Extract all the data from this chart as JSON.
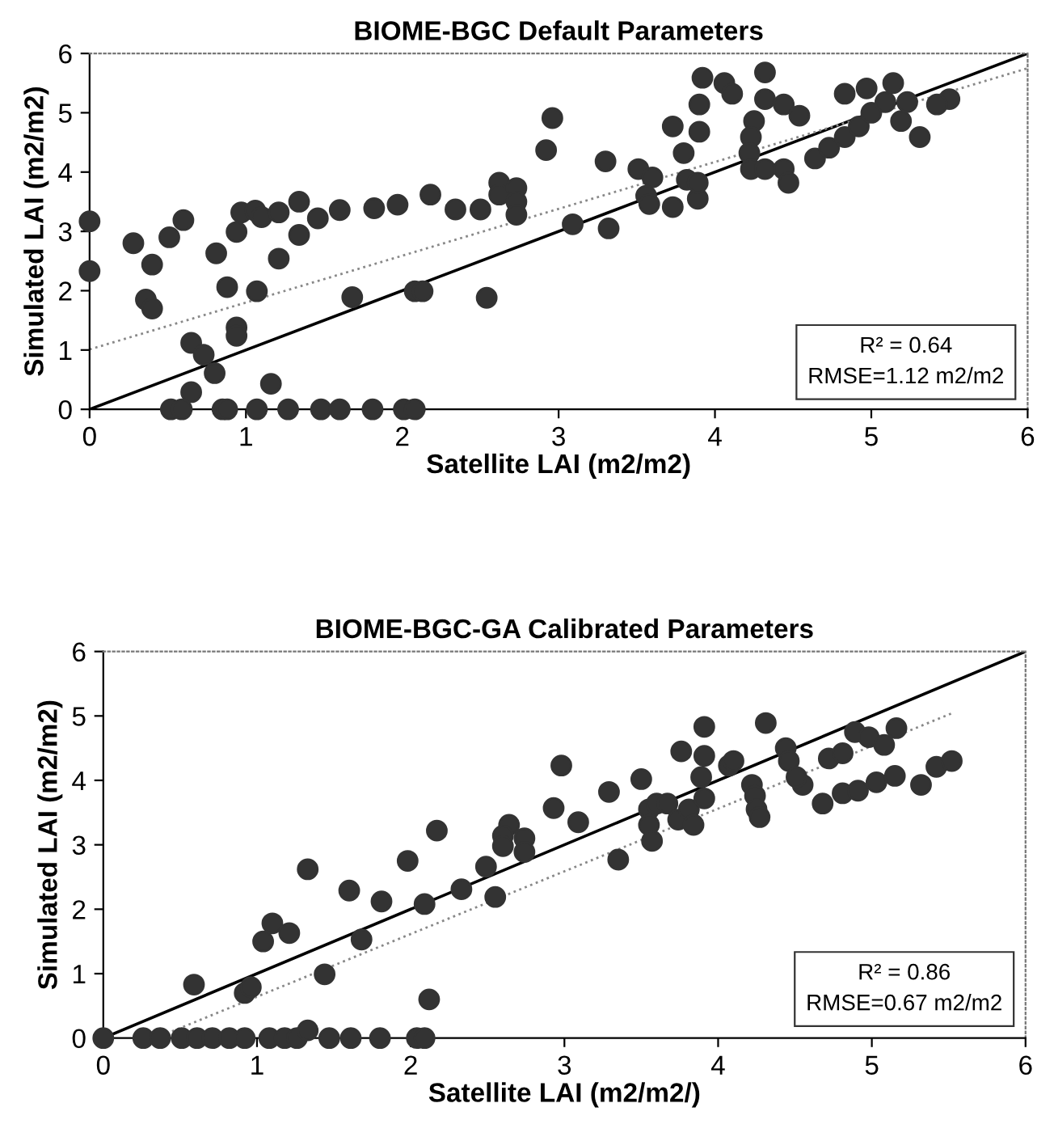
{
  "chart_data": [
    {
      "type": "scatter",
      "title": "BIOME-BGC Default Parameters",
      "xlabel": "Satellite LAI (m2/m2)",
      "ylabel": "Simulated LAI (m2/m2)",
      "xlim": [
        0,
        6
      ],
      "ylim": [
        0,
        6
      ],
      "xticks": [
        0,
        1,
        2,
        3,
        4,
        5,
        6
      ],
      "yticks": [
        0,
        1,
        2,
        3,
        4,
        5,
        6
      ],
      "grid": false,
      "legend": false,
      "annotations": [
        "R² = 0.64\nRMSE=1.12 m2/m2"
      ],
      "series": [
        {
          "color": "#333333",
          "marker": "circle",
          "x": [
            0,
            0,
            0.28,
            0.4,
            0.36,
            0.4,
            0.51,
            0.6,
            0.65,
            0.73,
            0.65,
            0.8,
            0.81,
            0.88,
            0.94,
            0.94,
            0.94,
            0.97,
            1.06,
            1.1,
            1.07,
            1.21,
            1.21,
            1.16,
            1.34,
            1.34,
            1.46,
            1.6,
            1.68,
            1.82,
            1.97,
            2.08,
            2.13,
            2.18,
            2.34,
            2.5,
            2.54,
            2.62,
            2.62,
            2.73,
            2.73,
            2.73,
            2.92,
            2.96,
            0.52,
            0.59,
            0.85,
            0.88,
            1.07,
            1.27,
            1.48,
            1.6,
            1.81,
            2.01,
            2.08,
            3.3,
            3.09,
            3.32,
            3.51,
            3.6,
            3.56,
            3.58,
            3.73,
            3.8,
            3.82,
            3.73,
            3.89,
            3.89,
            3.92,
            3.9,
            3.9,
            4.06,
            4.11,
            4.32,
            4.32,
            4.44,
            4.54,
            4.25,
            4.23,
            4.22,
            4.23,
            4.32,
            4.44,
            4.47,
            4.64,
            4.73,
            4.83,
            4.92,
            5.0,
            5.09,
            5.19,
            5.31,
            4.83,
            4.97,
            5.14,
            5.23,
            5.5,
            5.42
          ],
          "values": [
            3.17,
            2.33,
            2.8,
            2.44,
            1.85,
            1.7,
            2.9,
            3.19,
            1.12,
            0.92,
            0.29,
            0.61,
            2.63,
            2.06,
            2.99,
            1.38,
            1.24,
            3.32,
            3.35,
            3.24,
            1.99,
            3.32,
            2.54,
            0.43,
            3.5,
            2.94,
            3.22,
            3.36,
            1.89,
            3.39,
            3.45,
            1.99,
            1.99,
            3.62,
            3.37,
            3.37,
            1.88,
            3.82,
            3.62,
            3.73,
            3.5,
            3.28,
            4.37,
            4.91,
            0,
            0,
            0,
            0,
            0,
            0,
            0,
            0,
            0,
            0,
            0,
            4.18,
            3.12,
            3.05,
            4.05,
            3.91,
            3.6,
            3.46,
            4.77,
            4.32,
            3.87,
            3.41,
            3.55,
            3.82,
            5.59,
            5.14,
            4.68,
            5.5,
            5.32,
            5.68,
            5.23,
            5.14,
            4.95,
            4.86,
            4.59,
            4.32,
            4.05,
            4.05,
            4.05,
            3.82,
            4.23,
            4.41,
            4.59,
            4.77,
            5.0,
            5.18,
            4.86,
            4.59,
            5.32,
            5.41,
            5.5,
            5.18,
            5.23,
            5.14
          ]
        },
        {
          "type": "line",
          "color": "#000000",
          "line_style": "solid",
          "x": [
            0,
            6
          ],
          "values": [
            0,
            6
          ]
        },
        {
          "type": "line",
          "color": "#888888",
          "line_style": "dotted",
          "x": [
            0,
            6
          ],
          "values": [
            1.01,
            5.75
          ]
        }
      ]
    },
    {
      "type": "scatter",
      "title": "BIOME-BGC-GA Calibrated Parameters",
      "xlabel": "Satellite LAI (m2/m2/)",
      "ylabel": "Simulated LAI (m2/m2)",
      "xlim": [
        0,
        6
      ],
      "ylim": [
        0,
        6
      ],
      "xticks": [
        0,
        1,
        2,
        3,
        4,
        5,
        6
      ],
      "yticks": [
        0,
        1,
        2,
        3,
        4,
        5,
        6
      ],
      "grid": false,
      "legend": false,
      "annotations": [
        "R² = 0.86\nRMSE=0.67 m2/m2"
      ],
      "series": [
        {
          "color": "#333333",
          "marker": "circle",
          "x": [
            0,
            0.26,
            0.37,
            0.51,
            0.61,
            0.71,
            0.82,
            0.92,
            1.08,
            1.18,
            1.26,
            1.47,
            1.61,
            1.8,
            2.04,
            2.09,
            1.33,
            0.59,
            0.92,
            0.96,
            1.04,
            1.1,
            1.21,
            1.33,
            1.44,
            1.6,
            1.68,
            1.81,
            1.98,
            2.09,
            2.12,
            2.17,
            2.33,
            2.49,
            2.55,
            2.64,
            2.6,
            2.6,
            2.74,
            2.74,
            2.98,
            2.93,
            3.09,
            3.29,
            3.5,
            3.35,
            3.55,
            3.6,
            3.55,
            3.57,
            3.67,
            3.74,
            3.81,
            3.84,
            3.76,
            3.91,
            3.91,
            3.89,
            3.91,
            4.07,
            4.1,
            4.22,
            4.24,
            4.25,
            4.27,
            4.31,
            4.44,
            4.46,
            4.55,
            4.51,
            4.72,
            4.81,
            4.89,
            4.98,
            5.08,
            5.16,
            4.68,
            4.81,
            4.91,
            5.03,
            5.15,
            5.32,
            5.42,
            5.52
          ],
          "values": [
            0,
            0,
            0,
            0,
            0,
            0,
            0,
            0,
            0,
            0,
            0,
            0,
            0,
            0,
            0,
            0,
            0.12,
            0.83,
            0.7,
            0.79,
            1.5,
            1.78,
            1.63,
            2.62,
            0.99,
            2.29,
            1.53,
            2.12,
            2.75,
            2.08,
            0.6,
            3.22,
            2.31,
            2.66,
            2.19,
            3.31,
            3.14,
            2.98,
            3.1,
            2.89,
            4.23,
            3.57,
            3.35,
            3.82,
            4.02,
            2.77,
            3.55,
            3.64,
            3.31,
            3.06,
            3.64,
            3.39,
            3.55,
            3.31,
            4.45,
            4.83,
            4.38,
            4.05,
            3.72,
            4.23,
            4.3,
            3.93,
            3.76,
            3.55,
            3.43,
            4.89,
            4.5,
            4.3,
            3.93,
            4.05,
            4.34,
            4.42,
            4.75,
            4.67,
            4.55,
            4.81,
            3.64,
            3.8,
            3.84,
            3.97,
            4.07,
            3.93,
            4.21,
            4.3
          ]
        },
        {
          "type": "line",
          "color": "#000000",
          "line_style": "solid",
          "x": [
            0,
            6
          ],
          "values": [
            0,
            6
          ]
        },
        {
          "type": "line",
          "color": "#888888",
          "line_style": "dotted",
          "x": [
            0.34,
            5.52
          ],
          "values": [
            0,
            5.04
          ]
        }
      ]
    }
  ]
}
